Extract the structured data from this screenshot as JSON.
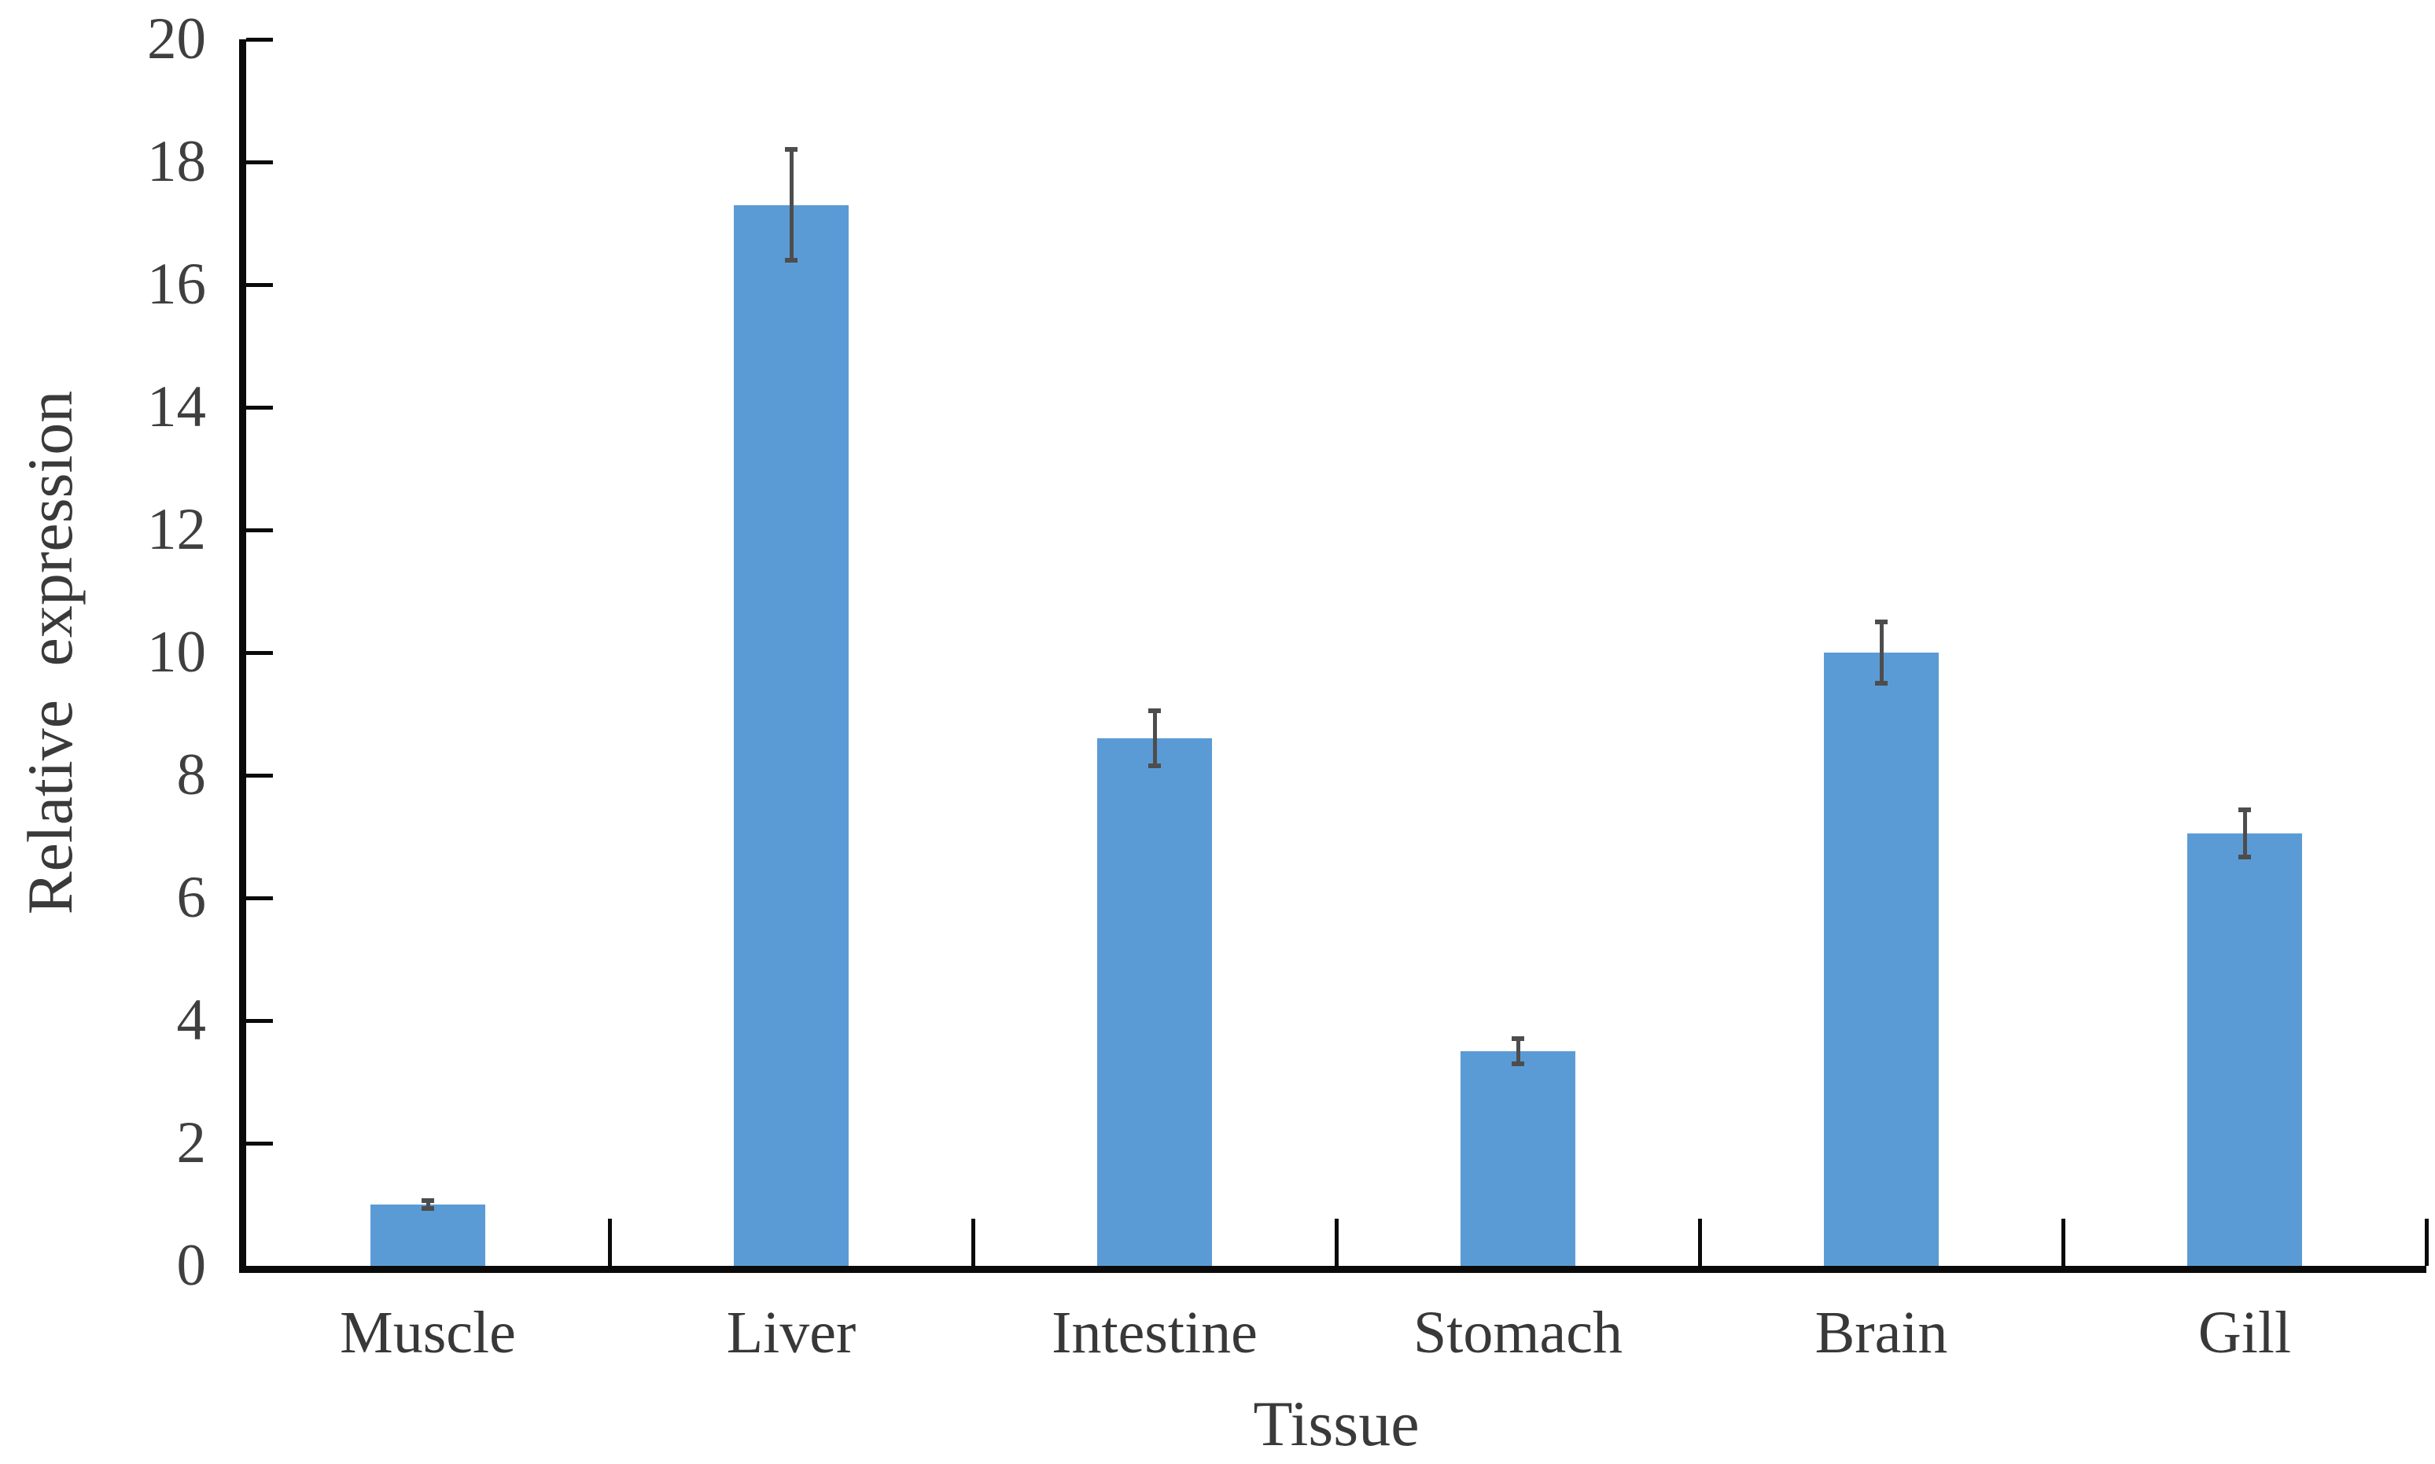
{
  "chart_data": {
    "type": "bar",
    "title": "",
    "xlabel": "Tissue",
    "ylabel": "Relative expression",
    "categories": [
      "Muscle",
      "Liver",
      "Intestine",
      "Stomach",
      "Brain",
      "Gill"
    ],
    "values": [
      1.0,
      17.3,
      8.6,
      3.5,
      10.0,
      7.05
    ],
    "errors": [
      0.07,
      0.9,
      0.45,
      0.2,
      0.5,
      0.38
    ],
    "ylim": [
      0,
      20
    ],
    "ytick_step": 2,
    "ytick_labels": [
      "0",
      "2",
      "4",
      "6",
      "8",
      "10",
      "12",
      "14",
      "16",
      "18",
      "20"
    ],
    "grid": false,
    "legend": "none",
    "layout_hints": {
      "axis_ticks": "inside",
      "error_bars": "symmetric"
    },
    "colors": {
      "bar_fill": "#5B9BD5",
      "error_bar": "#4D4D4D",
      "axis": "#0A0A0A",
      "tick_label": "#3F3F3F",
      "category_label": "#383838",
      "axis_title": "#3A3A3A",
      "background": "#FFFFFF"
    }
  }
}
